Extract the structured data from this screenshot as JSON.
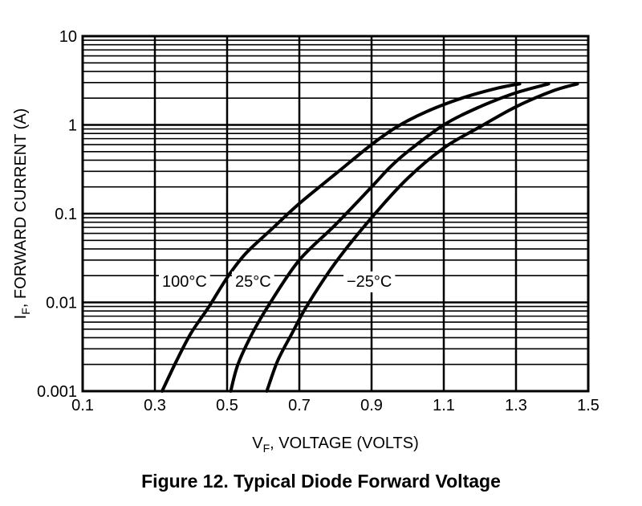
{
  "caption": "Figure 12. Typical Diode Forward Voltage",
  "chart_data": {
    "type": "line",
    "title": "",
    "xlabel": {
      "main": "V",
      "sub": "F",
      "rest": ", VOLTAGE (VOLTS)"
    },
    "ylabel": {
      "main": "I",
      "sub": "F",
      "rest": ", FORWARD CURRENT (A)"
    },
    "xlim": [
      0.1,
      1.5
    ],
    "ylim": [
      0.001,
      10
    ],
    "yscale": "log",
    "grid": true,
    "x_ticks": [
      0.1,
      0.3,
      0.5,
      0.7,
      0.9,
      1.1,
      1.3,
      1.5
    ],
    "x_tick_labels": [
      "0.1",
      "0.3",
      "0.5",
      "0.7",
      "0.9",
      "1.1",
      "1.3",
      "1.5"
    ],
    "y_ticks": [
      0.001,
      0.01,
      0.1,
      1,
      10
    ],
    "y_tick_labels": [
      "0.001",
      "0.01",
      "0.1",
      "1",
      "10"
    ],
    "series": [
      {
        "name": "100°C",
        "x": [
          0.32,
          0.36,
          0.4,
          0.45,
          0.5,
          0.55,
          0.62,
          0.7,
          0.8,
          0.9,
          0.97,
          1.05,
          1.15,
          1.25,
          1.31
        ],
        "y": [
          0.001,
          0.0022,
          0.0045,
          0.009,
          0.019,
          0.035,
          0.065,
          0.13,
          0.28,
          0.6,
          0.95,
          1.4,
          2.0,
          2.6,
          2.9
        ]
      },
      {
        "name": "25°C",
        "x": [
          0.51,
          0.53,
          0.57,
          0.62,
          0.7,
          0.8,
          0.9,
          0.95,
          1.0,
          1.1,
          1.2,
          1.3,
          1.39
        ],
        "y": [
          0.001,
          0.002,
          0.0045,
          0.01,
          0.03,
          0.075,
          0.2,
          0.33,
          0.5,
          1.0,
          1.6,
          2.3,
          2.9
        ]
      },
      {
        "name": "−25°C",
        "x": [
          0.61,
          0.64,
          0.68,
          0.72,
          0.8,
          0.9,
          1.0,
          1.1,
          1.2,
          1.3,
          1.4,
          1.47
        ],
        "y": [
          0.001,
          0.0022,
          0.0045,
          0.009,
          0.028,
          0.09,
          0.25,
          0.55,
          0.95,
          1.6,
          2.4,
          2.9
        ]
      }
    ]
  }
}
